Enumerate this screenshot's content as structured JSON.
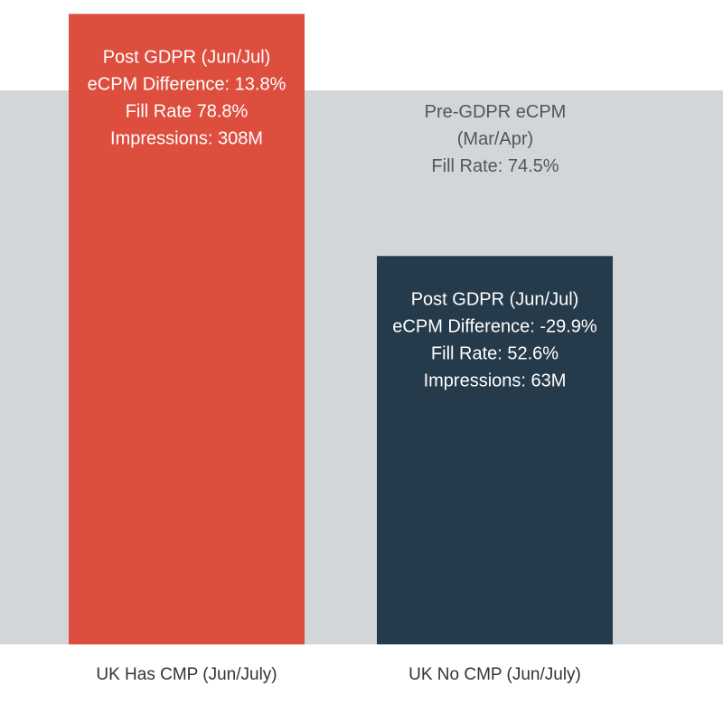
{
  "chart_data": {
    "type": "bar",
    "categories": [
      "UK Has CMP (Jun/July)",
      "UK No CMP (Jun/July)"
    ],
    "values": [
      113.8,
      70.1
    ],
    "baseline": {
      "value": 100,
      "label_lines": [
        "Pre-GDPR eCPM",
        "(Mar/Apr)",
        "Fill Rate: 74.5%"
      ],
      "color": "#d3d6d9"
    },
    "ylim": [
      0,
      120
    ],
    "bar_labels": [
      [
        "Post GDPR (Jun/Jul)",
        "eCPM Difference: 13.8%",
        "Fill Rate 78.8%",
        "Impressions: 308M"
      ],
      [
        "Post GDPR (Jun/Jul)",
        "eCPM Difference: -29.9%",
        "Fill Rate: 52.6%",
        "Impressions: 63M"
      ]
    ],
    "colors": [
      "#dd4e3e",
      "#253a4a"
    ],
    "label_color": "#ffffff",
    "baseline_label_color": "#555555",
    "grid": false,
    "title": "",
    "xlabel": "",
    "ylabel": ""
  }
}
